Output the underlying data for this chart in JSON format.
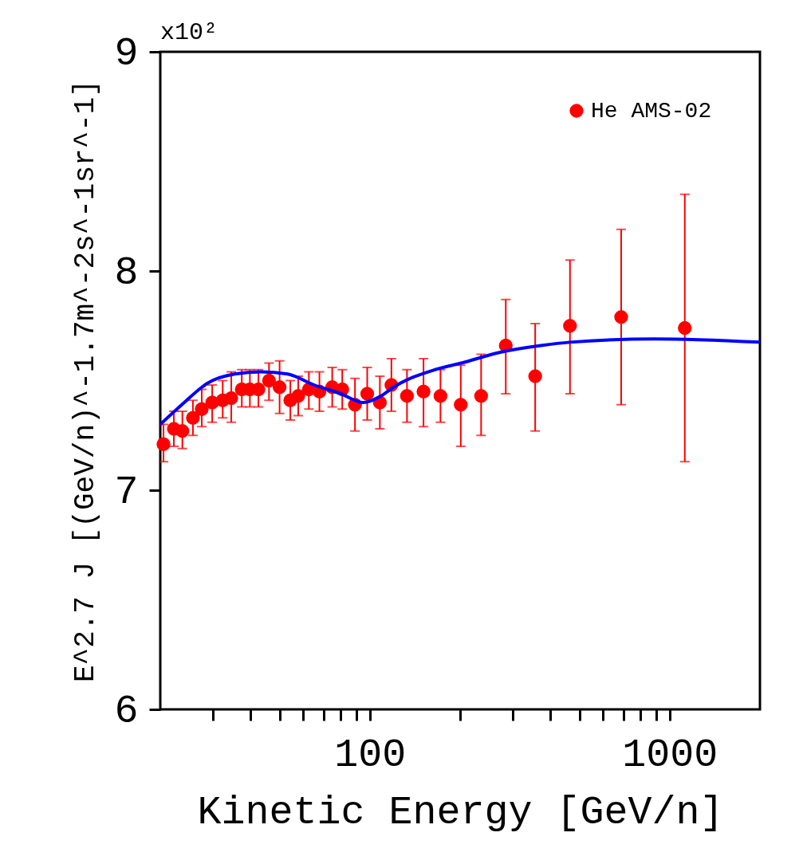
{
  "chart_data": {
    "type": "scatter",
    "xlabel": "Kinetic Energy [GeV/n]",
    "ylabel": "E^2.7 J [(GeV/n)^-1.7m^-2s^-1sr^-1]",
    "annotations": [
      "x10²"
    ],
    "log": "x",
    "xlim": [
      20,
      2000
    ],
    "xticks": [
      {
        "value": 30,
        "label": null
      },
      {
        "value": 40,
        "label": null
      },
      {
        "value": 50,
        "label": null
      },
      {
        "value": 60,
        "label": null
      },
      {
        "value": 70,
        "label": null
      },
      {
        "value": 80,
        "label": null
      },
      {
        "value": 90,
        "label": null
      },
      100,
      {
        "value": 200,
        "label": null
      },
      {
        "value": 300,
        "label": null
      },
      {
        "value": 400,
        "label": null
      },
      {
        "value": 500,
        "label": null
      },
      {
        "value": 600,
        "label": null
      },
      {
        "value": 700,
        "label": null
      },
      {
        "value": 800,
        "label": null
      },
      {
        "value": 900,
        "label": null
      },
      1000
    ],
    "ylim": [
      6,
      9
    ],
    "yticks": [
      6,
      7,
      8,
      9
    ],
    "grid": false,
    "legend": "top right",
    "series": [
      {
        "name": "He AMS-02",
        "color": "#ff0000",
        "marker": "circle",
        "x": [
          20.5,
          22.2,
          23.7,
          25.7,
          27.5,
          29.8,
          32.3,
          34.5,
          37.4,
          39.8,
          42.5,
          46.1,
          50.0,
          54.3,
          57.7,
          62.6,
          67.9,
          74.9,
          80.9,
          89.2,
          98.0,
          108,
          118,
          133,
          151,
          172,
          201,
          235,
          284,
          356,
          465,
          689,
          1123
        ],
        "values": [
          7.21,
          7.28,
          7.27,
          7.33,
          7.37,
          7.4,
          7.41,
          7.42,
          7.46,
          7.46,
          7.46,
          7.5,
          7.47,
          7.41,
          7.43,
          7.46,
          7.45,
          7.47,
          7.46,
          7.39,
          7.44,
          7.4,
          7.48,
          7.43,
          7.45,
          7.43,
          7.39,
          7.43,
          7.66,
          7.52,
          7.75,
          7.79,
          7.74
        ],
        "errors": [
          [
            7.13,
            7.3
          ],
          [
            7.2,
            7.36
          ],
          [
            7.19,
            7.36
          ],
          [
            7.25,
            7.41
          ],
          [
            7.29,
            7.46
          ],
          [
            7.31,
            7.48
          ],
          [
            7.33,
            7.5
          ],
          [
            7.31,
            7.54
          ],
          [
            7.38,
            7.55
          ],
          [
            7.38,
            7.55
          ],
          [
            7.38,
            7.55
          ],
          [
            7.41,
            7.58
          ],
          [
            7.35,
            7.59
          ],
          [
            7.32,
            7.5
          ],
          [
            7.34,
            7.52
          ],
          [
            7.37,
            7.54
          ],
          [
            7.36,
            7.54
          ],
          [
            7.38,
            7.56
          ],
          [
            7.37,
            7.55
          ],
          [
            7.27,
            7.51
          ],
          [
            7.32,
            7.56
          ],
          [
            7.28,
            7.52
          ],
          [
            7.36,
            7.6
          ],
          [
            7.31,
            7.55
          ],
          [
            7.29,
            7.6
          ],
          [
            7.31,
            7.55
          ],
          [
            7.2,
            7.57
          ],
          [
            7.25,
            7.62
          ],
          [
            7.44,
            7.87
          ],
          [
            7.27,
            7.76
          ],
          [
            7.44,
            8.05
          ],
          [
            7.39,
            8.19
          ],
          [
            7.13,
            8.35
          ]
        ]
      },
      {
        "type": "line",
        "color": "#0000ff",
        "marker": "none",
        "line_style": "solid",
        "x": [
          20.0,
          23.6,
          28.9,
          35.4,
          43.4,
          53.2,
          65.2,
          80.0,
          95.1,
          109,
          120,
          165,
          202,
          274,
          372,
          465,
          891,
          2000
        ],
        "values": [
          7.3,
          7.39,
          7.49,
          7.53,
          7.54,
          7.53,
          7.48,
          7.44,
          7.4,
          7.43,
          7.47,
          7.55,
          7.58,
          7.63,
          7.66,
          7.675,
          7.69,
          7.675
        ]
      }
    ]
  }
}
